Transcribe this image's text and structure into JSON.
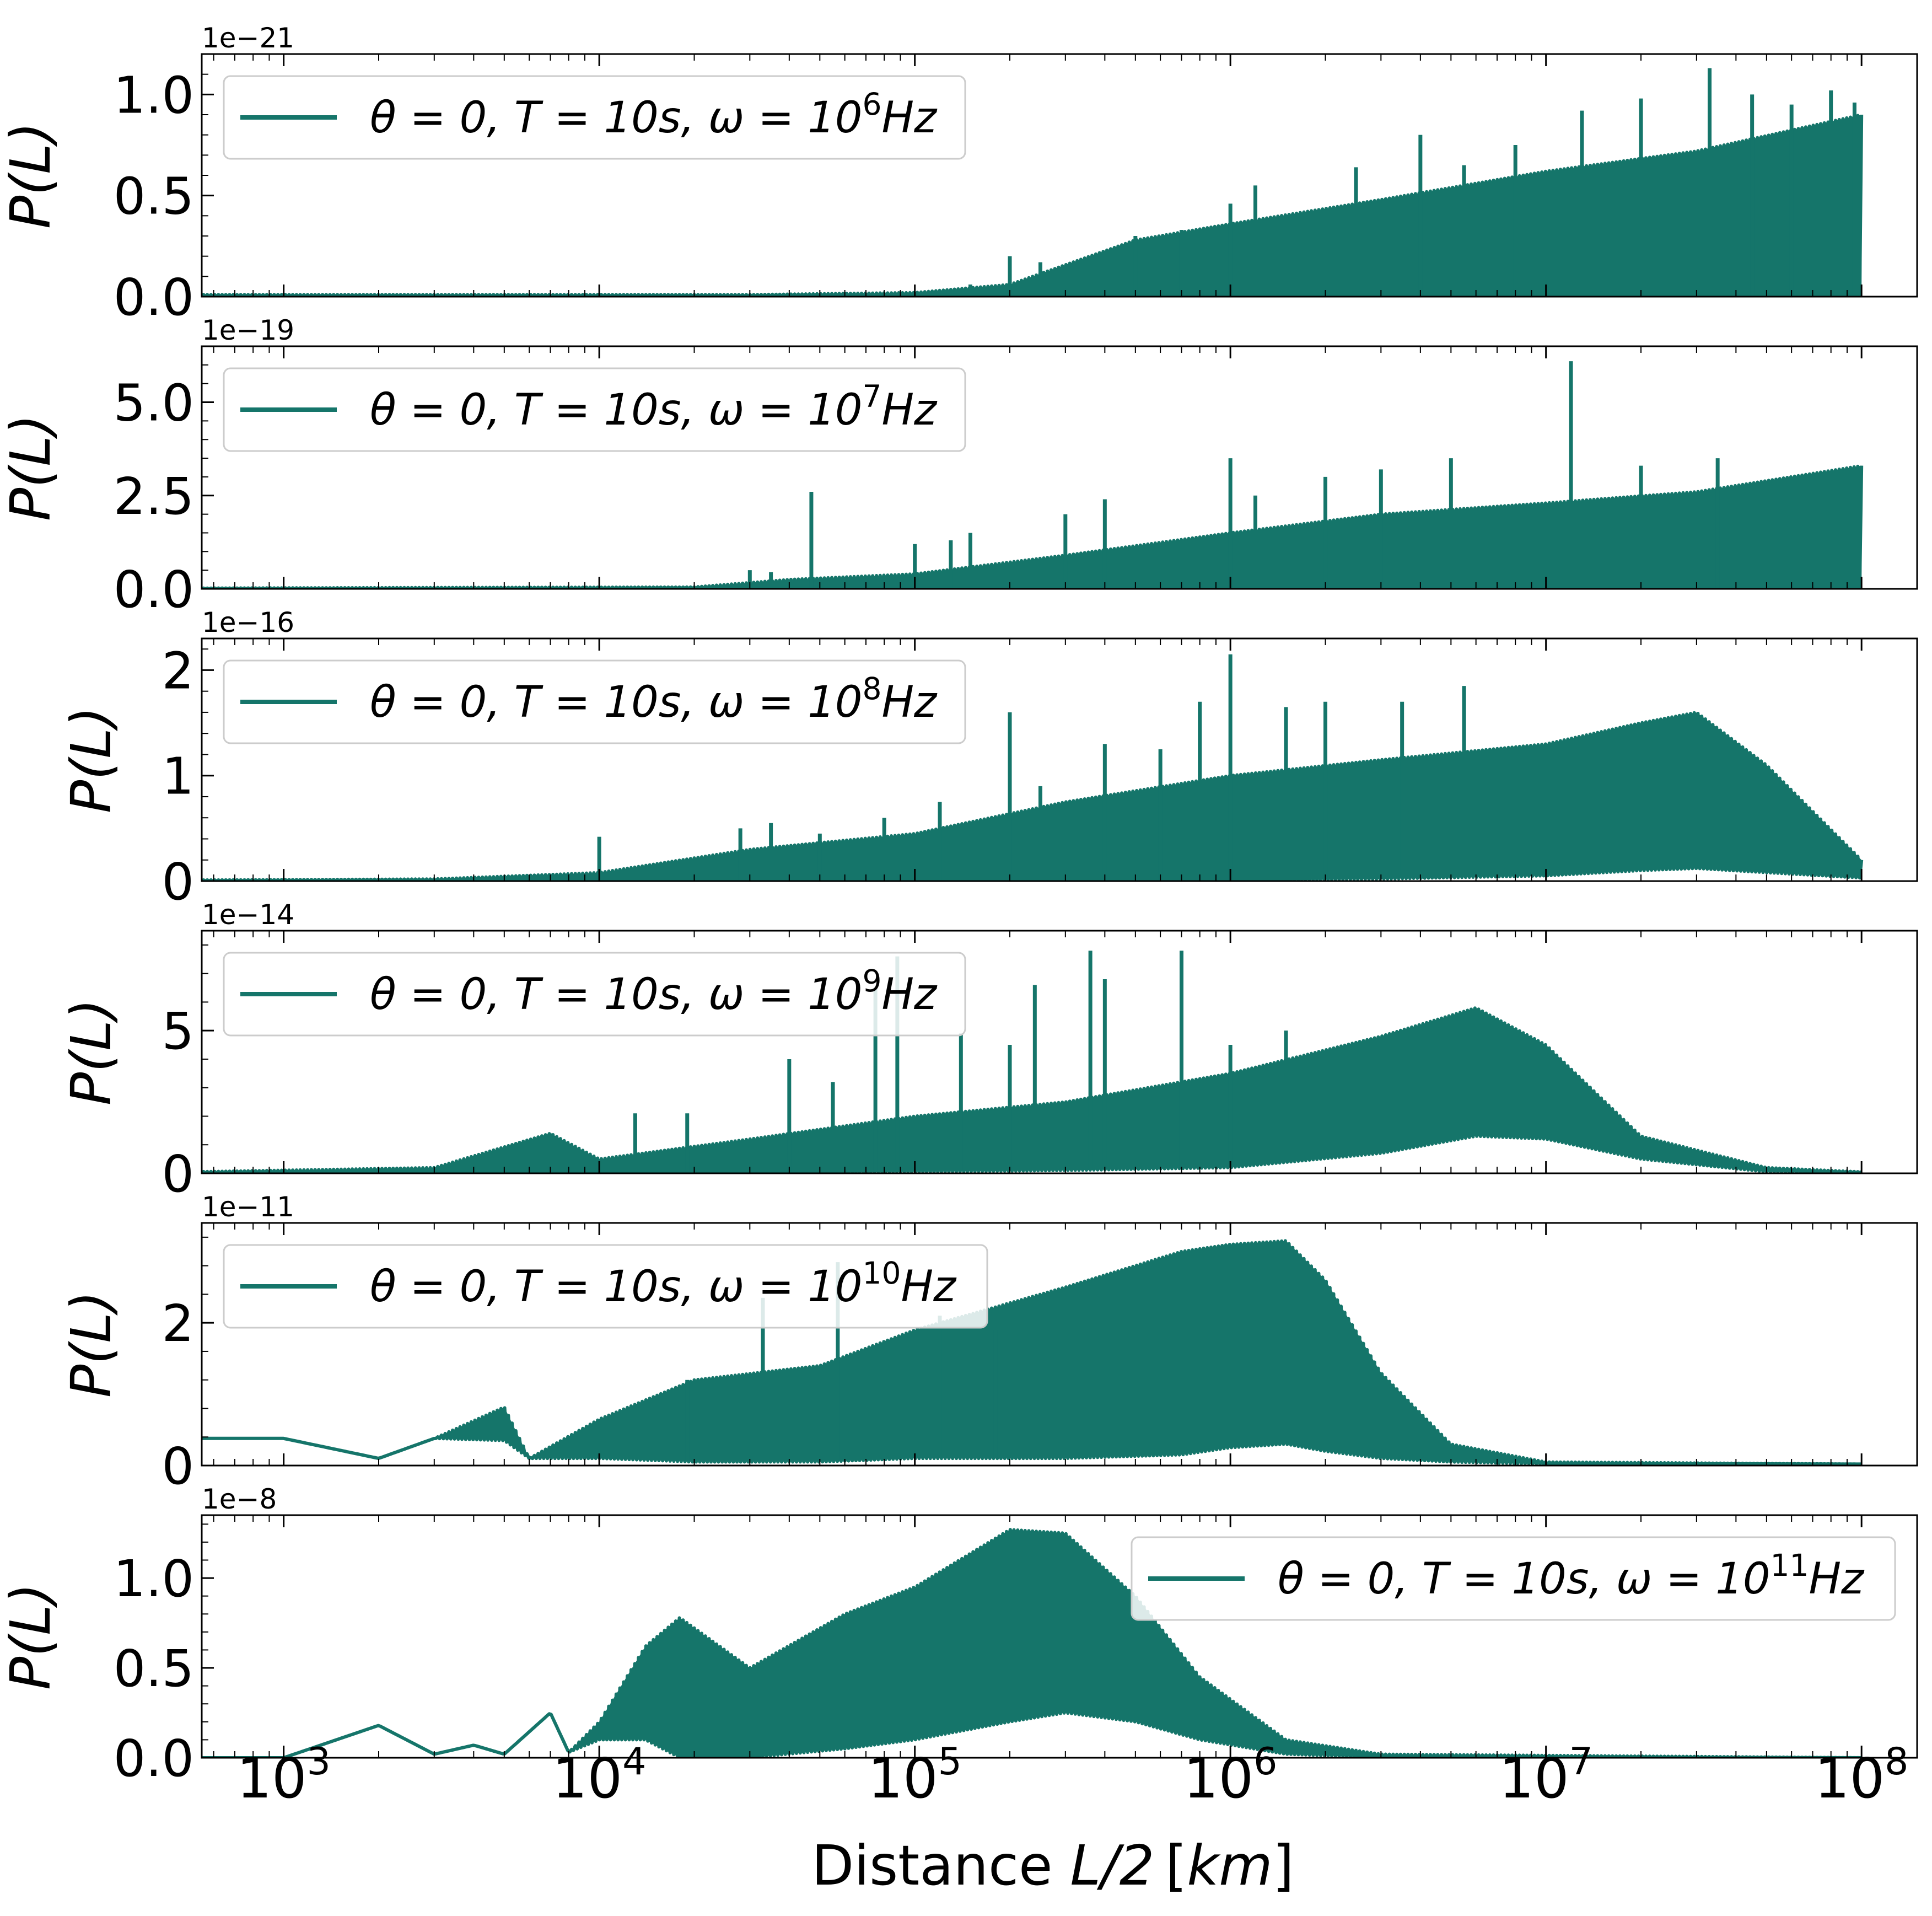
{
  "figure": {
    "xlabel_prefix": "Distance ",
    "xlabel_math": "L/2",
    "xlabel_unit": "[km]",
    "line_color": "#15756A",
    "x_tick_labels": [
      {
        "base": "10",
        "exp": "3",
        "value": 1000
      },
      {
        "base": "10",
        "exp": "4",
        "value": 10000
      },
      {
        "base": "10",
        "exp": "5",
        "value": 100000
      },
      {
        "base": "10",
        "exp": "6",
        "value": 1000000
      },
      {
        "base": "10",
        "exp": "7",
        "value": 10000000
      },
      {
        "base": "10",
        "exp": "8",
        "value": 100000000
      }
    ]
  },
  "chart_data": [
    {
      "type": "line",
      "xscale": "log",
      "xlim": [
        550,
        150000000
      ],
      "ylim": [
        0,
        1.2
      ],
      "ylabel": "P(L)",
      "offset_text": "1e−21",
      "ytick_labels": [
        "0.0",
        "0.5",
        "1.0"
      ],
      "ytick_values": [
        0,
        0.5,
        1.0
      ],
      "legend": {
        "placement": "upper-left",
        "theta": "θ = 0,",
        "T": "T = 10s,",
        "omega_base": "ω = 10",
        "omega_exp": "6",
        "unit": "Hz"
      },
      "series": [
        {
          "name": "θ = 0, T = 10s, ω = 10⁶Hz",
          "envelope": {
            "x": [
              500,
              30000,
              100000,
              200000,
              500000,
              1000000,
              3000000,
              10000000,
              30000000,
              100000000
            ],
            "upper": [
              0.01,
              0.01,
              0.02,
              0.06,
              0.28,
              0.36,
              0.48,
              0.62,
              0.72,
              0.9
            ],
            "lower": [
              0,
              0,
              0,
              0,
              0,
              0,
              0,
              0,
              0,
              0
            ]
          },
          "spikes": [
            [
              150000,
              0.06
            ],
            [
              200000,
              0.2
            ],
            [
              250000,
              0.17
            ],
            [
              500000,
              0.3
            ],
            [
              700000,
              0.33
            ],
            [
              1000000,
              0.46
            ],
            [
              1200000,
              0.55
            ],
            [
              2500000,
              0.64
            ],
            [
              4000000,
              0.8
            ],
            [
              5500000,
              0.65
            ],
            [
              8000000,
              0.75
            ],
            [
              13000000,
              0.92
            ],
            [
              20000000,
              0.98
            ],
            [
              33000000,
              1.13
            ],
            [
              45000000,
              1.0
            ],
            [
              60000000,
              0.95
            ],
            [
              80000000,
              1.02
            ],
            [
              95000000,
              0.96
            ]
          ]
        }
      ]
    },
    {
      "type": "line",
      "xscale": "log",
      "xlim": [
        550,
        150000000
      ],
      "ylim": [
        0,
        6.5
      ],
      "ylabel": "P(L)",
      "offset_text": "1e−19",
      "ytick_labels": [
        "0.0",
        "2.5",
        "5.0"
      ],
      "ytick_values": [
        0,
        2.5,
        5.0
      ],
      "legend": {
        "placement": "upper-left",
        "theta": "θ = 0,",
        "T": "T = 10s,",
        "omega_base": "ω = 10",
        "omega_exp": "7",
        "unit": "Hz"
      },
      "series": [
        {
          "name": "θ = 0, T = 10s, ω = 10⁷Hz",
          "envelope": {
            "x": [
              500,
              20000,
              40000,
              100000,
              300000,
              1000000,
              3000000,
              10000000,
              30000000,
              100000000
            ],
            "upper": [
              0.02,
              0.05,
              0.25,
              0.4,
              0.9,
              1.5,
              2.0,
              2.3,
              2.6,
              3.3
            ],
            "lower": [
              0,
              0,
              0,
              0,
              0,
              0,
              0,
              0,
              0,
              0
            ]
          },
          "spikes": [
            [
              30000,
              0.5
            ],
            [
              35000,
              0.45
            ],
            [
              47000,
              2.6
            ],
            [
              60000,
              0.3
            ],
            [
              100000,
              1.2
            ],
            [
              130000,
              1.3
            ],
            [
              150000,
              1.5
            ],
            [
              300000,
              2.0
            ],
            [
              400000,
              2.4
            ],
            [
              1000000,
              3.5
            ],
            [
              1200000,
              2.5
            ],
            [
              2000000,
              3.0
            ],
            [
              3000000,
              3.2
            ],
            [
              5000000,
              3.5
            ],
            [
              12000000,
              6.1
            ],
            [
              20000000,
              3.3
            ],
            [
              35000000,
              3.5
            ]
          ]
        }
      ]
    },
    {
      "type": "line",
      "xscale": "log",
      "xlim": [
        550,
        150000000
      ],
      "ylim": [
        0,
        2.3
      ],
      "ylabel": "P(L)",
      "offset_text": "1e−16",
      "ytick_labels": [
        "0",
        "1",
        "2"
      ],
      "ytick_values": [
        0,
        1,
        2
      ],
      "legend": {
        "placement": "upper-left",
        "theta": "θ = 0,",
        "T": "T = 10s,",
        "omega_base": "ω = 10",
        "omega_exp": "8",
        "unit": "Hz"
      },
      "series": [
        {
          "name": "θ = 0, T = 10s, ω = 10⁸Hz",
          "envelope": {
            "x": [
              500,
              3000,
              10000,
              30000,
              100000,
              300000,
              1000000,
              3000000,
              10000000,
              20000000,
              30000000,
              50000000,
              100000000
            ],
            "upper": [
              0.01,
              0.02,
              0.08,
              0.3,
              0.45,
              0.75,
              1.0,
              1.15,
              1.3,
              1.5,
              1.6,
              1.1,
              0.2
            ],
            "lower": [
              0,
              0,
              0,
              0,
              0,
              0,
              0,
              0.02,
              0.05,
              0.1,
              0.12,
              0.08,
              0.03
            ]
          },
          "spikes": [
            [
              10000,
              0.42
            ],
            [
              28000,
              0.5
            ],
            [
              35000,
              0.55
            ],
            [
              50000,
              0.45
            ],
            [
              80000,
              0.6
            ],
            [
              120000,
              0.75
            ],
            [
              200000,
              1.6
            ],
            [
              250000,
              0.9
            ],
            [
              400000,
              1.3
            ],
            [
              600000,
              1.25
            ],
            [
              800000,
              1.7
            ],
            [
              1000000,
              2.15
            ],
            [
              1500000,
              1.65
            ],
            [
              2000000,
              1.7
            ],
            [
              3500000,
              1.7
            ],
            [
              5500000,
              1.85
            ]
          ]
        }
      ]
    },
    {
      "type": "line",
      "xscale": "log",
      "xlim": [
        550,
        150000000
      ],
      "ylim": [
        0,
        8.5
      ],
      "ylabel": "P(L)",
      "offset_text": "1e−14",
      "ytick_labels": [
        "0",
        "5"
      ],
      "ytick_values": [
        0,
        5
      ],
      "legend": {
        "placement": "upper-left",
        "theta": "θ = 0,",
        "T": "T = 10s,",
        "omega_base": "ω = 10",
        "omega_exp": "9",
        "unit": "Hz"
      },
      "series": [
        {
          "name": "θ = 0, T = 10s, ω = 10⁹Hz",
          "envelope": {
            "x": [
              500,
              3000,
              7000,
              10000,
              30000,
              100000,
              300000,
              1000000,
              3000000,
              6000000,
              10000000,
              20000000,
              50000000,
              100000000
            ],
            "upper": [
              0.05,
              0.2,
              1.4,
              0.5,
              1.2,
              2.0,
              2.5,
              3.5,
              4.8,
              5.8,
              4.5,
              1.3,
              0.2,
              0.05
            ],
            "lower": [
              0,
              0,
              0,
              0,
              0,
              0.05,
              0.1,
              0.2,
              0.7,
              1.3,
              1.2,
              0.5,
              0.05,
              0.02
            ]
          },
          "spikes": [
            [
              7000,
              1.4
            ],
            [
              13000,
              2.1
            ],
            [
              19000,
              2.1
            ],
            [
              40000,
              4.0
            ],
            [
              55000,
              3.2
            ],
            [
              75000,
              6.5
            ],
            [
              88000,
              7.6
            ],
            [
              140000,
              4.9
            ],
            [
              200000,
              4.5
            ],
            [
              240000,
              6.6
            ],
            [
              360000,
              7.8
            ],
            [
              400000,
              6.8
            ],
            [
              700000,
              7.8
            ],
            [
              1000000,
              4.5
            ],
            [
              1500000,
              5.0
            ]
          ]
        }
      ]
    },
    {
      "type": "line",
      "xscale": "log",
      "xlim": [
        550,
        150000000
      ],
      "ylim": [
        0,
        3.4
      ],
      "ylabel": "P(L)",
      "offset_text": "1e−11",
      "ytick_labels": [
        "0",
        "2"
      ],
      "ytick_values": [
        0,
        2
      ],
      "legend": {
        "placement": "upper-left",
        "theta": "θ = 0,",
        "T": "T = 10s,",
        "omega_base": "ω = 10",
        "omega_exp": "10",
        "unit": "Hz"
      },
      "series": [
        {
          "name": "θ = 0, T = 10s, ω = 10¹⁰Hz",
          "envelope": {
            "x": [
              500,
              1000,
              2000,
              3000,
              5000,
              6000,
              10000,
              20000,
              50000,
              100000,
              300000,
              700000,
              1000000,
              1500000,
              2000000,
              3000000,
              5000000,
              10000000,
              100000000
            ],
            "upper": [
              0.38,
              0.38,
              0.1,
              0.38,
              0.82,
              0.1,
              0.65,
              1.2,
              1.4,
              1.9,
              2.5,
              3.0,
              3.1,
              3.15,
              2.6,
              1.3,
              0.3,
              0.05,
              0.02
            ],
            "lower": [
              0.38,
              0.38,
              0.1,
              0.38,
              0.35,
              0.1,
              0.1,
              0.05,
              0.05,
              0.1,
              0.1,
              0.15,
              0.25,
              0.3,
              0.2,
              0.1,
              0.05,
              0.02,
              0.02
            ]
          },
          "spikes": [
            [
              19000,
              1.2
            ],
            [
              33000,
              2.35
            ],
            [
              57000,
              2.85
            ],
            [
              80000,
              1.75
            ],
            [
              120000,
              2.1
            ],
            [
              180000,
              1.9
            ]
          ]
        }
      ]
    },
    {
      "type": "line",
      "xscale": "log",
      "xlim": [
        550,
        150000000
      ],
      "ylim": [
        0,
        1.35
      ],
      "ylabel": "P(L)",
      "offset_text": "1e−8",
      "ytick_labels": [
        "0.0",
        "0.5",
        "1.0"
      ],
      "ytick_values": [
        0,
        0.5,
        1.0
      ],
      "legend": {
        "placement": "upper-right",
        "theta": "θ = 0,",
        "T": "T = 10s,",
        "omega_base": "ω = 10",
        "omega_exp": "11",
        "unit": "Hz"
      },
      "series": [
        {
          "name": "θ = 0, T = 10s, ω = 10¹¹Hz",
          "envelope": {
            "x": [
              500,
              1000,
              2000,
              3000,
              4000,
              5000,
              7000,
              8000,
              10000,
              14000,
              18000,
              30000,
              60000,
              100000,
              200000,
              300000,
              500000,
              800000,
              1500000,
              3000000,
              100000000
            ],
            "upper": [
              0.0,
              0.0,
              0.18,
              0.02,
              0.07,
              0.02,
              0.25,
              0.03,
              0.2,
              0.62,
              0.78,
              0.5,
              0.8,
              0.95,
              1.27,
              1.25,
              0.9,
              0.45,
              0.1,
              0.02,
              0.0
            ],
            "lower": [
              0.0,
              0.0,
              0.18,
              0.02,
              0.07,
              0.02,
              0.25,
              0.03,
              0.1,
              0.1,
              0.0,
              0.0,
              0.05,
              0.1,
              0.2,
              0.25,
              0.2,
              0.1,
              0.02,
              0.0,
              0.0
            ]
          },
          "spikes": []
        }
      ]
    }
  ]
}
